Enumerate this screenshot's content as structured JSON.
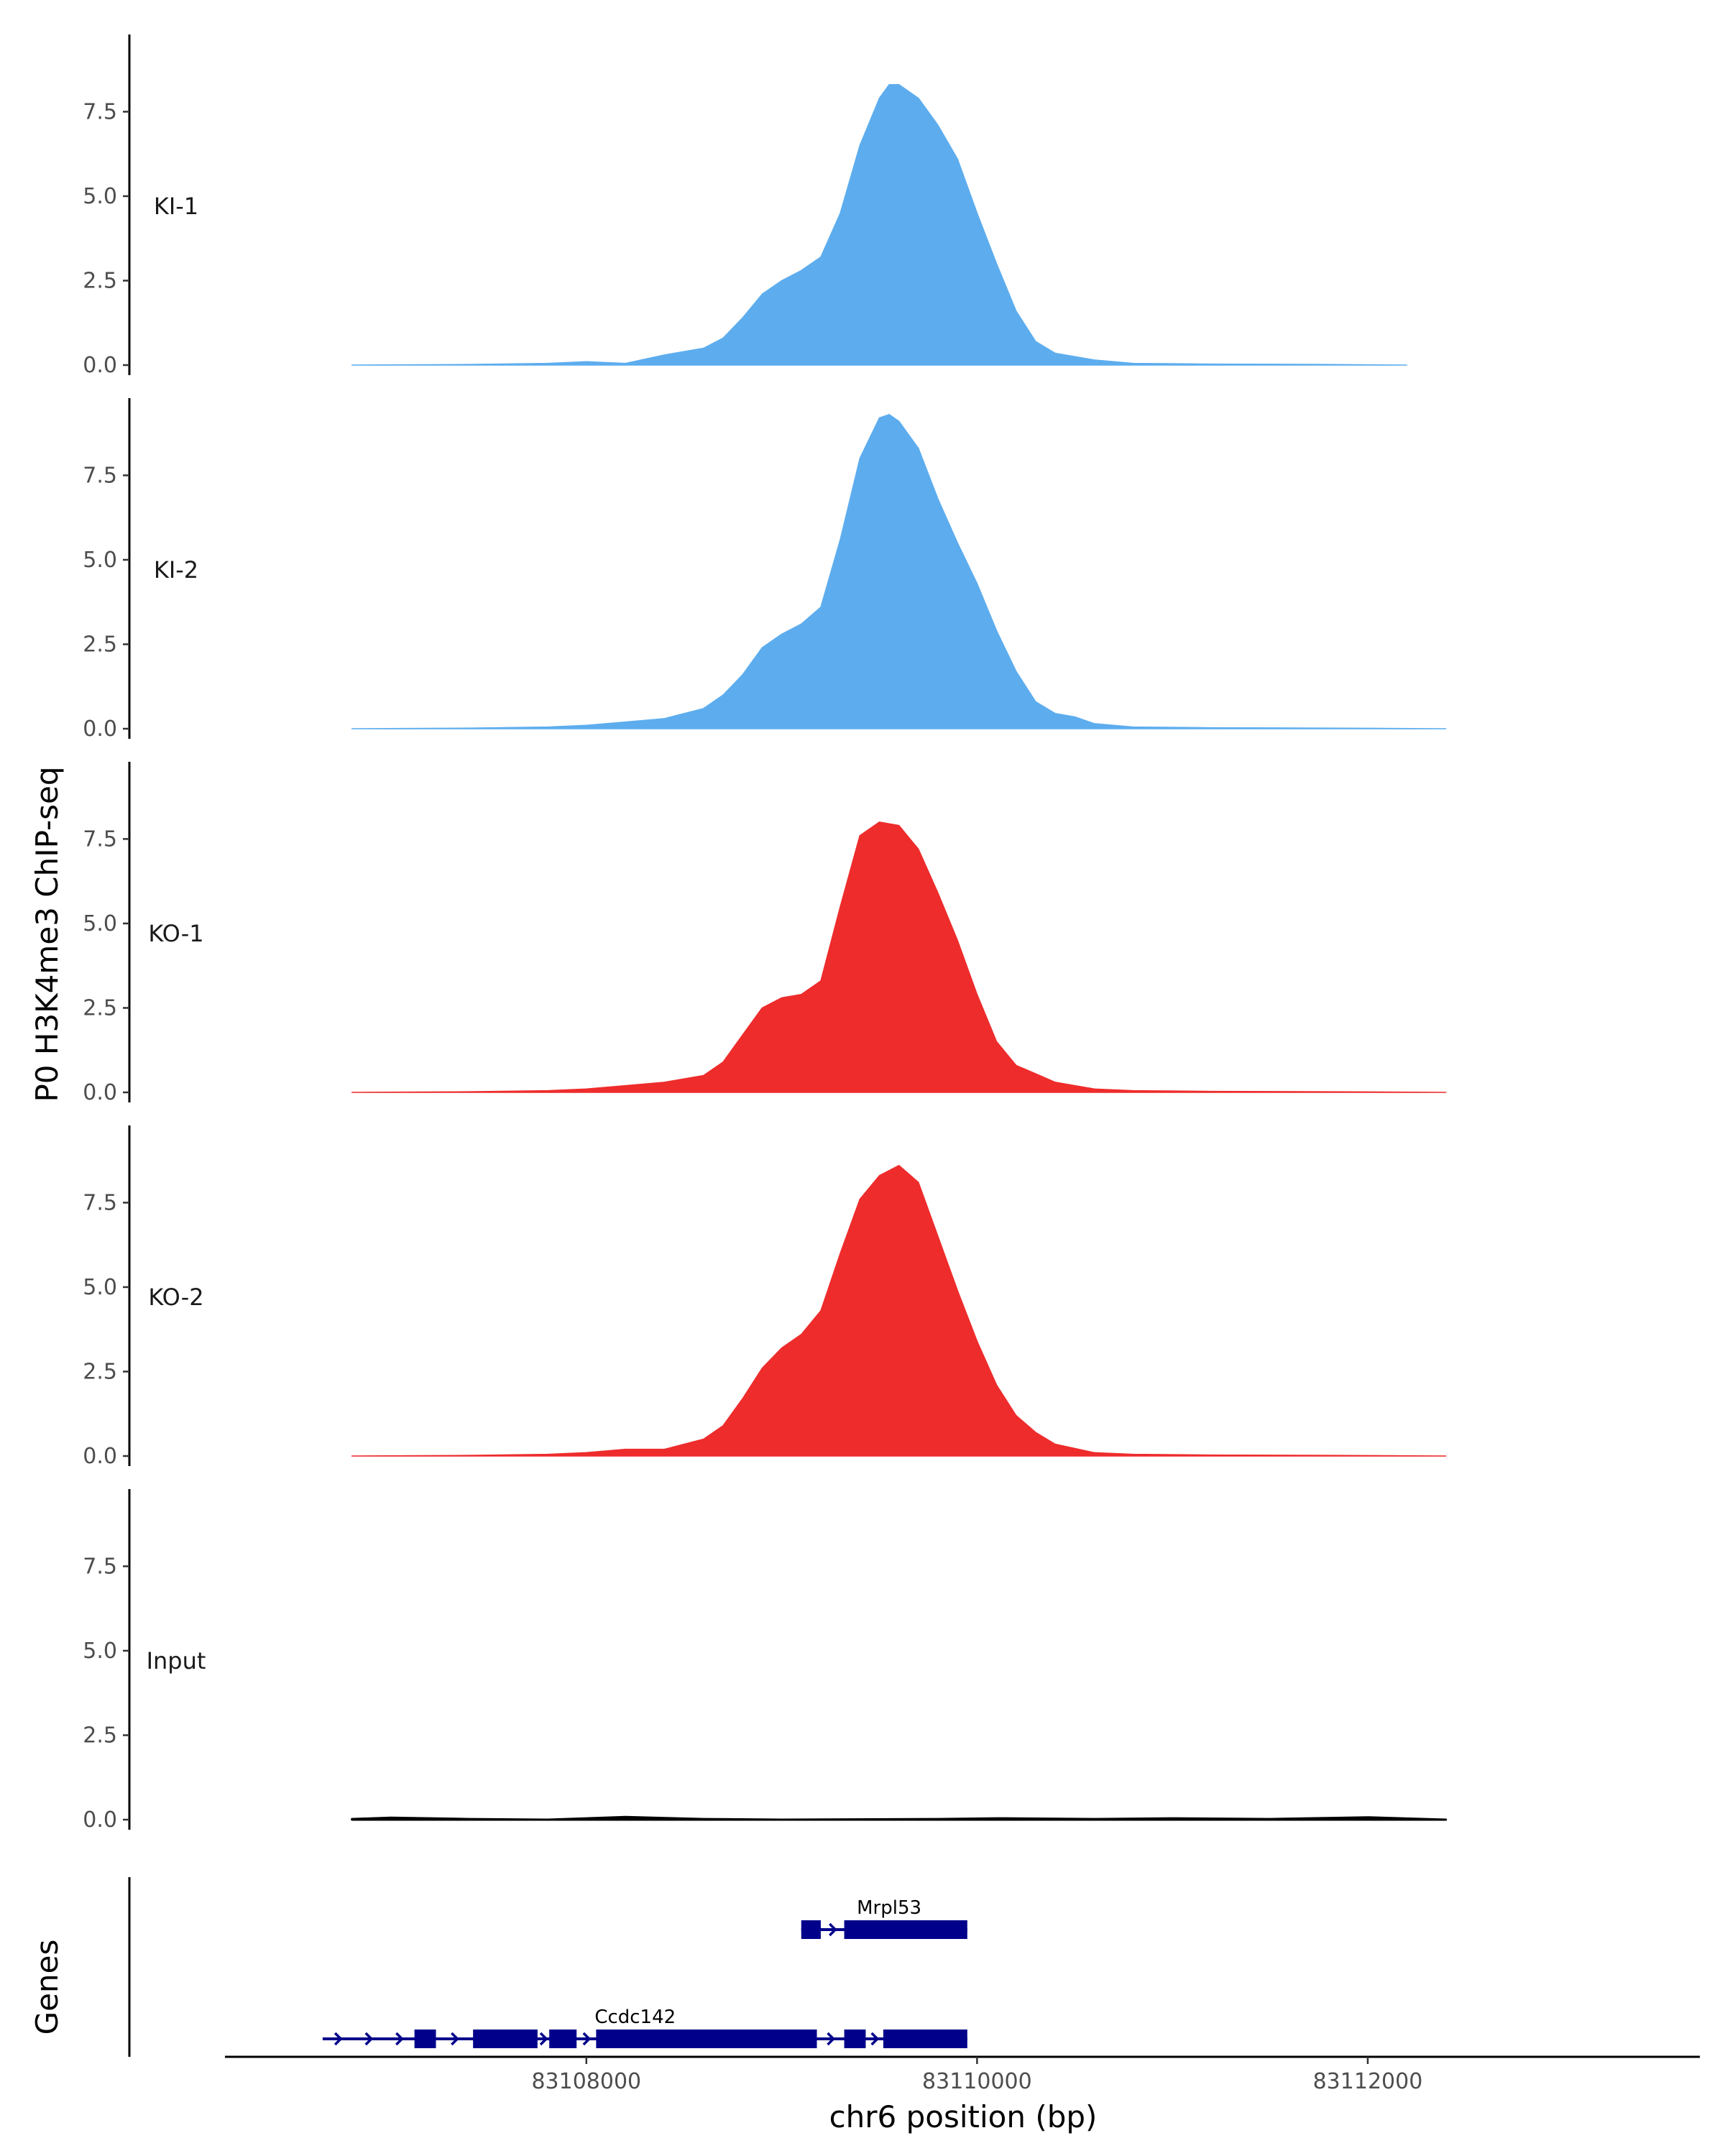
{
  "chart_data": {
    "type": "area",
    "ylabel": "P0 H3K4me3 ChIP-seq",
    "xlabel": "chr6 position (bp)",
    "xlim": [
      83106150,
      83113700
    ],
    "ylim": [
      0,
      9.7
    ],
    "y_ticks": [
      0.0,
      2.5,
      5.0,
      7.5
    ],
    "y_tick_labels": [
      "0.0",
      "2.5",
      "5.0",
      "7.5"
    ],
    "x_ticks": [
      83108000,
      83110000,
      83112000
    ],
    "x_tick_labels": [
      "83108000",
      "83110000",
      "83112000"
    ],
    "grid": false,
    "tracks": [
      {
        "name": "KI-1",
        "color": "#5DADEE",
        "points": [
          [
            83106800,
            0
          ],
          [
            83107400,
            0.02
          ],
          [
            83107800,
            0.05
          ],
          [
            83108000,
            0.1
          ],
          [
            83108200,
            0.05
          ],
          [
            83108400,
            0.3
          ],
          [
            83108600,
            0.5
          ],
          [
            83108700,
            0.8
          ],
          [
            83108800,
            1.4
          ],
          [
            83108900,
            2.1
          ],
          [
            83109000,
            2.5
          ],
          [
            83109100,
            2.8
          ],
          [
            83109200,
            3.2
          ],
          [
            83109300,
            4.5
          ],
          [
            83109400,
            6.5
          ],
          [
            83109500,
            7.9
          ],
          [
            83109550,
            8.3
          ],
          [
            83109600,
            8.3
          ],
          [
            83109700,
            7.9
          ],
          [
            83109800,
            7.1
          ],
          [
            83109900,
            6.1
          ],
          [
            83110000,
            4.5
          ],
          [
            83110100,
            3.0
          ],
          [
            83110200,
            1.6
          ],
          [
            83110300,
            0.7
          ],
          [
            83110400,
            0.35
          ],
          [
            83110600,
            0.15
          ],
          [
            83110800,
            0.05
          ],
          [
            83111200,
            0.03
          ],
          [
            83111800,
            0.02
          ],
          [
            83112200,
            0
          ]
        ]
      },
      {
        "name": "KI-2",
        "color": "#5DADEE",
        "points": [
          [
            83106800,
            0
          ],
          [
            83107400,
            0.02
          ],
          [
            83107800,
            0.05
          ],
          [
            83108000,
            0.1
          ],
          [
            83108200,
            0.2
          ],
          [
            83108400,
            0.3
          ],
          [
            83108600,
            0.6
          ],
          [
            83108700,
            1.0
          ],
          [
            83108800,
            1.6
          ],
          [
            83108900,
            2.4
          ],
          [
            83109000,
            2.8
          ],
          [
            83109100,
            3.1
          ],
          [
            83109200,
            3.6
          ],
          [
            83109300,
            5.6
          ],
          [
            83109400,
            8.0
          ],
          [
            83109500,
            9.2
          ],
          [
            83109550,
            9.3
          ],
          [
            83109600,
            9.1
          ],
          [
            83109700,
            8.3
          ],
          [
            83109800,
            6.8
          ],
          [
            83109900,
            5.5
          ],
          [
            83110000,
            4.3
          ],
          [
            83110100,
            2.9
          ],
          [
            83110200,
            1.7
          ],
          [
            83110300,
            0.8
          ],
          [
            83110400,
            0.45
          ],
          [
            83110500,
            0.35
          ],
          [
            83110600,
            0.15
          ],
          [
            83110800,
            0.05
          ],
          [
            83111200,
            0.03
          ],
          [
            83111800,
            0.02
          ],
          [
            83112400,
            0
          ]
        ]
      },
      {
        "name": "KO-1",
        "color": "#EE2C2C",
        "points": [
          [
            83106800,
            0
          ],
          [
            83107400,
            0.02
          ],
          [
            83107800,
            0.05
          ],
          [
            83108000,
            0.1
          ],
          [
            83108200,
            0.2
          ],
          [
            83108400,
            0.3
          ],
          [
            83108600,
            0.5
          ],
          [
            83108700,
            0.9
          ],
          [
            83108800,
            1.7
          ],
          [
            83108900,
            2.5
          ],
          [
            83109000,
            2.8
          ],
          [
            83109100,
            2.9
          ],
          [
            83109200,
            3.3
          ],
          [
            83109300,
            5.5
          ],
          [
            83109400,
            7.6
          ],
          [
            83109500,
            8.0
          ],
          [
            83109600,
            7.9
          ],
          [
            83109700,
            7.2
          ],
          [
            83109800,
            5.9
          ],
          [
            83109900,
            4.5
          ],
          [
            83110000,
            2.9
          ],
          [
            83110100,
            1.5
          ],
          [
            83110200,
            0.8
          ],
          [
            83110300,
            0.55
          ],
          [
            83110400,
            0.3
          ],
          [
            83110600,
            0.1
          ],
          [
            83110800,
            0.05
          ],
          [
            83111200,
            0.03
          ],
          [
            83111800,
            0.02
          ],
          [
            83112400,
            0
          ]
        ]
      },
      {
        "name": "KO-2",
        "color": "#EE2C2C",
        "points": [
          [
            83106800,
            0
          ],
          [
            83107400,
            0.02
          ],
          [
            83107800,
            0.05
          ],
          [
            83108000,
            0.1
          ],
          [
            83108200,
            0.2
          ],
          [
            83108400,
            0.2
          ],
          [
            83108600,
            0.5
          ],
          [
            83108700,
            0.9
          ],
          [
            83108800,
            1.7
          ],
          [
            83108900,
            2.6
          ],
          [
            83109000,
            3.2
          ],
          [
            83109100,
            3.6
          ],
          [
            83109200,
            4.3
          ],
          [
            83109300,
            6.0
          ],
          [
            83109400,
            7.6
          ],
          [
            83109500,
            8.3
          ],
          [
            83109600,
            8.6
          ],
          [
            83109700,
            8.1
          ],
          [
            83109800,
            6.5
          ],
          [
            83109900,
            4.9
          ],
          [
            83110000,
            3.4
          ],
          [
            83110100,
            2.1
          ],
          [
            83110200,
            1.2
          ],
          [
            83110300,
            0.7
          ],
          [
            83110400,
            0.35
          ],
          [
            83110600,
            0.1
          ],
          [
            83110800,
            0.05
          ],
          [
            83111200,
            0.03
          ],
          [
            83111800,
            0.02
          ],
          [
            83112400,
            0
          ]
        ]
      },
      {
        "name": "Input",
        "color": "#000000",
        "points": [
          [
            83106800,
            0.02
          ],
          [
            83107000,
            0.06
          ],
          [
            83107400,
            0.02
          ],
          [
            83107800,
            0
          ],
          [
            83108200,
            0.08
          ],
          [
            83108600,
            0.02
          ],
          [
            83109000,
            0
          ],
          [
            83109800,
            0.02
          ],
          [
            83110100,
            0.04
          ],
          [
            83110600,
            0.02
          ],
          [
            83111000,
            0.04
          ],
          [
            83111500,
            0.02
          ],
          [
            83112000,
            0.07
          ],
          [
            83112400,
            0
          ]
        ]
      }
    ],
    "genes_track": {
      "ylabel": "Genes",
      "color": "#00008B",
      "genes": [
        {
          "name": "Mrpl53",
          "row": 0,
          "start": 83109100,
          "end": 83109950,
          "exons": [
            [
              83109100,
              83109200
            ],
            [
              83109320,
              83109950
            ]
          ]
        },
        {
          "name": "Ccdc142",
          "row": 1,
          "start": 83106650,
          "end": 83109950,
          "exons": [
            [
              83107120,
              83107230
            ],
            [
              83107420,
              83107750
            ],
            [
              83107810,
              83107950
            ],
            [
              83108050,
              83109180
            ],
            [
              83109320,
              83109430
            ],
            [
              83109520,
              83109950
            ]
          ]
        }
      ]
    }
  }
}
